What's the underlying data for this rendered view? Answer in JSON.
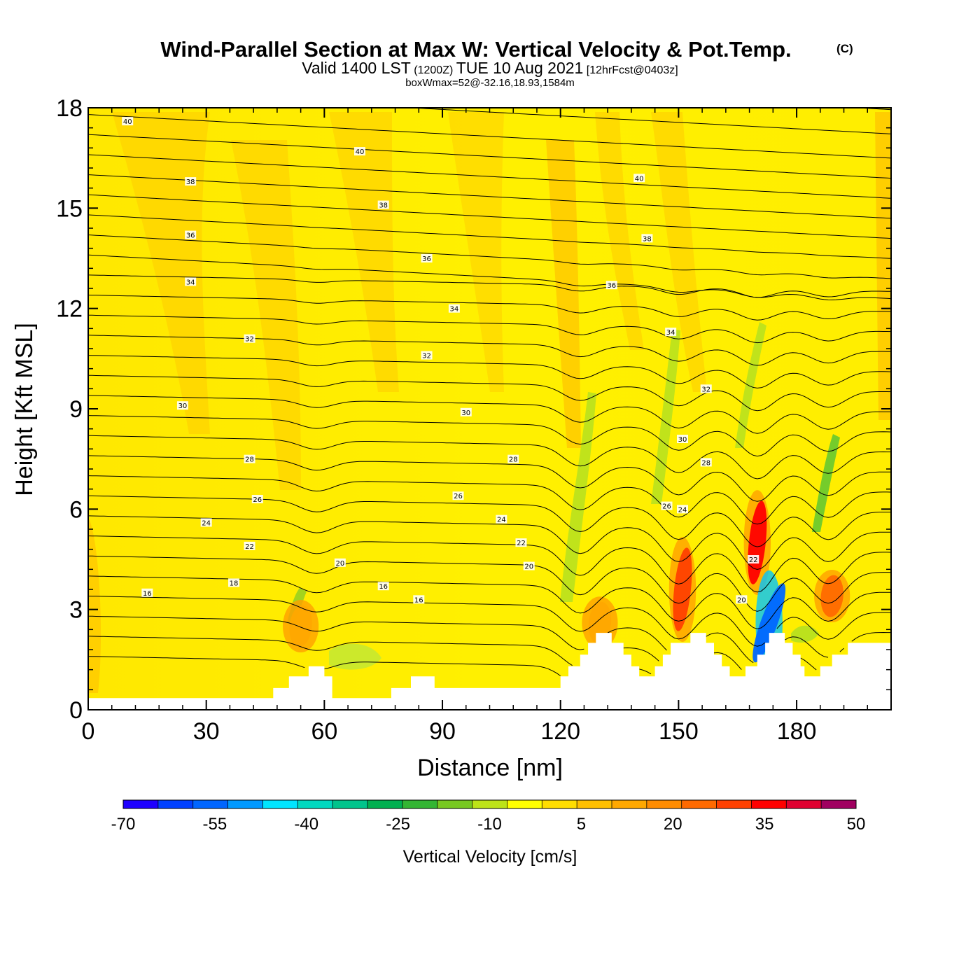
{
  "chart_data": {
    "type": "heatmap",
    "title": "Wind-Parallel Section at Max W: Vertical Velocity & Pot.Temp.",
    "title_mark": "(C)",
    "subtitle_valid": "Valid 1400 LST",
    "subtitle_utc": "(1200Z)",
    "subtitle_date": "TUE 10 Aug 2021",
    "subtitle_fcst": "[12hrFcst@0403z]",
    "subtitle2": "boxWmax=52@-32.16,18.93,1584m",
    "xlabel": "Distance [nm]",
    "ylabel": "Height [Kft MSL]",
    "xlim": [
      0,
      204
    ],
    "ylim": [
      0,
      18
    ],
    "xticks": [
      0,
      30,
      60,
      90,
      120,
      150,
      180
    ],
    "yticks": [
      0,
      3,
      6,
      9,
      12,
      15,
      18
    ],
    "colorbar": {
      "label": "Vertical Velocity [cm/s]",
      "ticks": [
        -70,
        -55,
        -40,
        -25,
        -10,
        5,
        20,
        35,
        50
      ],
      "colors": [
        "#1e00ff",
        "#0040ff",
        "#0066ff",
        "#0099ff",
        "#00e5ff",
        "#00d9c0",
        "#00c48c",
        "#00b050",
        "#33b533",
        "#77c820",
        "#bde318",
        "#ffff00",
        "#ffdd00",
        "#ffc000",
        "#ffa800",
        "#ff8c00",
        "#ff6a00",
        "#ff4000",
        "#ff0000",
        "#e00030",
        "#a00060"
      ]
    },
    "contour_levels": [
      16,
      18,
      20,
      22,
      24,
      26,
      28,
      30,
      32,
      34,
      36,
      38,
      40
    ],
    "contour_labels": [
      {
        "x": 10,
        "y": 17.6,
        "text": "40"
      },
      {
        "x": 69,
        "y": 16.7,
        "text": "40"
      },
      {
        "x": 140,
        "y": 15.9,
        "text": "40"
      },
      {
        "x": 26,
        "y": 15.8,
        "text": "38"
      },
      {
        "x": 75,
        "y": 15.1,
        "text": "38"
      },
      {
        "x": 142,
        "y": 14.1,
        "text": "38"
      },
      {
        "x": 26,
        "y": 14.2,
        "text": "36"
      },
      {
        "x": 86,
        "y": 13.5,
        "text": "36"
      },
      {
        "x": 133,
        "y": 12.7,
        "text": "36"
      },
      {
        "x": 26,
        "y": 12.8,
        "text": "34"
      },
      {
        "x": 93,
        "y": 12.0,
        "text": "34"
      },
      {
        "x": 148,
        "y": 11.3,
        "text": "34"
      },
      {
        "x": 41,
        "y": 11.1,
        "text": "32"
      },
      {
        "x": 86,
        "y": 10.6,
        "text": "32"
      },
      {
        "x": 157,
        "y": 9.6,
        "text": "32"
      },
      {
        "x": 24,
        "y": 9.1,
        "text": "30"
      },
      {
        "x": 96,
        "y": 8.9,
        "text": "30"
      },
      {
        "x": 151,
        "y": 8.1,
        "text": "30"
      },
      {
        "x": 41,
        "y": 7.5,
        "text": "28"
      },
      {
        "x": 108,
        "y": 7.5,
        "text": "28"
      },
      {
        "x": 157,
        "y": 7.4,
        "text": "28"
      },
      {
        "x": 43,
        "y": 6.3,
        "text": "26"
      },
      {
        "x": 94,
        "y": 6.4,
        "text": "26"
      },
      {
        "x": 147,
        "y": 6.1,
        "text": "26"
      },
      {
        "x": 30,
        "y": 5.6,
        "text": "24"
      },
      {
        "x": 105,
        "y": 5.7,
        "text": "24"
      },
      {
        "x": 151,
        "y": 6.0,
        "text": "24"
      },
      {
        "x": 41,
        "y": 4.9,
        "text": "22"
      },
      {
        "x": 110,
        "y": 5.0,
        "text": "22"
      },
      {
        "x": 169,
        "y": 4.5,
        "text": "22"
      },
      {
        "x": 64,
        "y": 4.4,
        "text": "20"
      },
      {
        "x": 112,
        "y": 4.3,
        "text": "20"
      },
      {
        "x": 166,
        "y": 3.3,
        "text": "20"
      },
      {
        "x": 37,
        "y": 3.8,
        "text": "18"
      },
      {
        "x": 15,
        "y": 3.5,
        "text": "16"
      },
      {
        "x": 75,
        "y": 3.7,
        "text": "16"
      },
      {
        "x": 84,
        "y": 3.3,
        "text": "16"
      }
    ],
    "vertical_velocity_features": [
      {
        "x": 170,
        "y": 5.0,
        "value": 35
      },
      {
        "x": 151,
        "y": 3.6,
        "value": 30
      },
      {
        "x": 189,
        "y": 3.4,
        "value": 25
      },
      {
        "x": 173,
        "y": 2.6,
        "value": -55
      },
      {
        "x": 54,
        "y": 2.5,
        "value": 15
      },
      {
        "x": 130,
        "y": 2.6,
        "value": 15
      }
    ],
    "terrain_kft": [
      [
        0,
        0.35
      ],
      [
        47,
        0.35
      ],
      [
        47,
        0.65
      ],
      [
        51,
        0.65
      ],
      [
        51,
        1.0
      ],
      [
        56,
        1.0
      ],
      [
        56,
        1.3
      ],
      [
        60,
        1.3
      ],
      [
        60,
        1.0
      ],
      [
        62,
        1.0
      ],
      [
        62,
        0.35
      ],
      [
        77,
        0.35
      ],
      [
        77,
        0.65
      ],
      [
        82,
        0.65
      ],
      [
        82,
        1.0
      ],
      [
        88,
        1.0
      ],
      [
        88,
        0.65
      ],
      [
        120,
        0.65
      ],
      [
        120,
        1.0
      ],
      [
        122,
        1.0
      ],
      [
        122,
        1.3
      ],
      [
        125,
        1.3
      ],
      [
        125,
        1.65
      ],
      [
        127,
        1.65
      ],
      [
        127,
        2.0
      ],
      [
        129,
        2.0
      ],
      [
        129,
        2.3
      ],
      [
        133,
        2.3
      ],
      [
        133,
        2.0
      ],
      [
        136,
        2.0
      ],
      [
        136,
        1.65
      ],
      [
        138,
        1.65
      ],
      [
        138,
        1.3
      ],
      [
        140,
        1.3
      ],
      [
        140,
        1.0
      ],
      [
        144,
        1.0
      ],
      [
        144,
        1.3
      ],
      [
        146,
        1.3
      ],
      [
        146,
        1.65
      ],
      [
        148,
        1.65
      ],
      [
        148,
        2.0
      ],
      [
        153,
        2.0
      ],
      [
        153,
        2.3
      ],
      [
        157,
        2.3
      ],
      [
        157,
        2.0
      ],
      [
        159,
        2.0
      ],
      [
        159,
        1.65
      ],
      [
        161,
        1.65
      ],
      [
        161,
        1.3
      ],
      [
        163,
        1.3
      ],
      [
        163,
        1.0
      ],
      [
        167,
        1.0
      ],
      [
        167,
        1.3
      ],
      [
        170,
        1.3
      ],
      [
        170,
        1.65
      ],
      [
        172,
        1.65
      ],
      [
        172,
        2.0
      ],
      [
        173,
        2.0
      ],
      [
        173,
        2.3
      ],
      [
        177,
        2.3
      ],
      [
        177,
        2.0
      ],
      [
        179,
        2.0
      ],
      [
        179,
        1.65
      ],
      [
        181,
        1.65
      ],
      [
        181,
        1.3
      ],
      [
        182,
        1.3
      ],
      [
        182,
        1.0
      ],
      [
        186,
        1.0
      ],
      [
        186,
        1.3
      ],
      [
        189,
        1.3
      ],
      [
        189,
        1.65
      ],
      [
        193,
        1.65
      ],
      [
        193,
        2.0
      ],
      [
        204,
        2.0
      ]
    ]
  }
}
